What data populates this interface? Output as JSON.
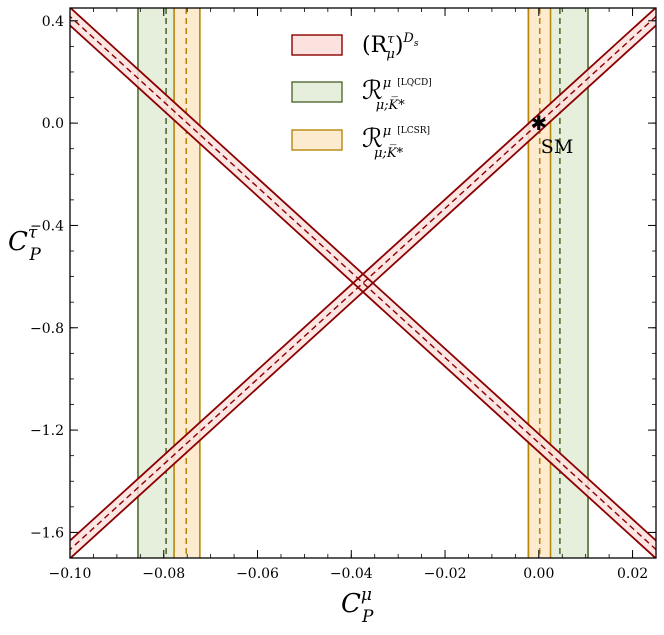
{
  "chart_data": {
    "type": "line",
    "xlabel": {
      "base": "C",
      "sub": "P",
      "sup": "μ"
    },
    "ylabel": {
      "base": "C",
      "sub": "P",
      "sup": "τ"
    },
    "xlim": [
      -0.1,
      0.025
    ],
    "ylim": [
      -1.7,
      0.45
    ],
    "xticks": [
      -0.1,
      -0.08,
      -0.06,
      -0.04,
      -0.02,
      0.0,
      0.02
    ],
    "xtick_labels": [
      "−0.10",
      "−0.08",
      "−0.06",
      "−0.04",
      "−0.02",
      "0.00",
      "0.02"
    ],
    "yticks": [
      0.4,
      0.0,
      -0.4,
      -0.8,
      -1.2,
      -1.6
    ],
    "ytick_labels": [
      "0.4",
      "0.0",
      "−0.4",
      "−0.8",
      "−1.2",
      "−1.6"
    ],
    "grid": false,
    "legend_position": "top-center",
    "colors": {
      "red_edge": "#8b0000",
      "red_fill": "#fbe2de",
      "green_edge": "#4f6b33",
      "green_fill": "#e6efdc",
      "orange_edge": "#b8860b",
      "orange_fill": "#fdebd0"
    },
    "series": [
      {
        "name": "(R^τ_μ)^{D_s}",
        "kind": "crossing-bands",
        "vertex": [
          -0.0375,
          -0.625
        ],
        "slope": 16.67,
        "half_width": 0.035
      },
      {
        "name": "R^μ_{μ;K*} [LQCD]",
        "kind": "vertical-bands",
        "bands": [
          {
            "lo": -0.0855,
            "hi": -0.0725,
            "center": -0.0795
          },
          {
            "lo": -0.0022,
            "hi": 0.0105,
            "center": 0.0045
          }
        ]
      },
      {
        "name": "R^μ_{μ;K*} [LCSR]",
        "kind": "vertical-bands",
        "bands": [
          {
            "lo": -0.0778,
            "hi": -0.0723,
            "center": -0.0752
          },
          {
            "lo": -0.0022,
            "hi": 0.0025,
            "center": 0.0002
          }
        ]
      }
    ],
    "sm_point": {
      "x": 0.0,
      "y": 0.0,
      "label": "SM"
    }
  },
  "legend": [
    {
      "main": "(R",
      "sup": "τ",
      "sub": "μ",
      "close": ")",
      "outer_sup": "D",
      "outer_sub": "s"
    },
    {
      "main": "ℛ",
      "sup": "μ",
      "tag": "[LQCD]",
      "sub": "μ;K̅*"
    },
    {
      "main": "ℛ",
      "sup": "μ",
      "tag": "[LCSR]",
      "sub": "μ;K̅*"
    }
  ]
}
